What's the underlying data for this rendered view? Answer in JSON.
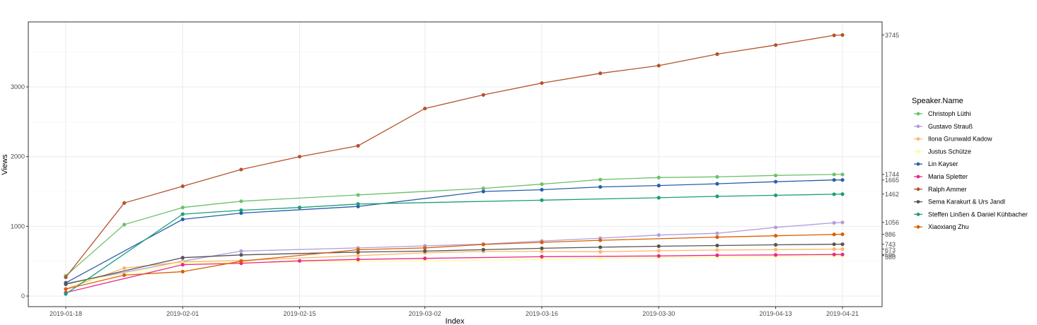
{
  "chart_data": {
    "type": "line",
    "xlabel": "Index",
    "ylabel": "Views",
    "x": [
      "2019-01-18",
      "2019-01-25",
      "2019-02-01",
      "2019-02-08",
      "2019-02-15",
      "2019-02-22",
      "2019-03-02",
      "2019-03-09",
      "2019-03-16",
      "2019-03-23",
      "2019-03-30",
      "2019-04-06",
      "2019-04-13",
      "2019-04-20",
      "2019-04-21"
    ],
    "x_ticks": [
      "2019-01-18",
      "2019-02-01",
      "2019-02-15",
      "2019-03-02",
      "2019-03-16",
      "2019-03-30",
      "2019-04-13",
      "2019-04-21"
    ],
    "y_ticks": [
      0,
      1000,
      2000,
      3000
    ],
    "ylim": [
      -150,
      3900
    ],
    "grid": true,
    "legend_title": "Speaker.Name",
    "legend_position": "right",
    "secondary_axis_labels": [
      "3745",
      "1744",
      "1665",
      "1462",
      "1056",
      "886",
      "743",
      "673",
      "596",
      "580"
    ],
    "series": [
      {
        "name": "Christoph Lüthi",
        "color": "#6cc06b",
        "values": [
          290,
          1025,
          1270,
          1360,
          null,
          1450,
          null,
          1545,
          1605,
          1670,
          1700,
          1710,
          1730,
          1744,
          1744
        ]
      },
      {
        "name": "Gustavo Strauß",
        "color": "#b39ddb",
        "values": [
          180,
          null,
          500,
          645,
          null,
          690,
          720,
          745,
          790,
          830,
          875,
          900,
          985,
          1050,
          1056
        ]
      },
      {
        "name": "Ilona Grunwald Kadow",
        "color": "#fdb56b",
        "values": [
          100,
          400,
          490,
          510,
          null,
          580,
          620,
          640,
          640,
          635,
          650,
          660,
          665,
          673,
          673
        ]
      },
      {
        "name": "Justus Schütze",
        "color": "#ffff99",
        "values": [
          170,
          null,
          470,
          480,
          null,
          495,
          505,
          null,
          525,
          540,
          548,
          560,
          570,
          580,
          580
        ]
      },
      {
        "name": "Lin Kayser",
        "color": "#2a5eaa",
        "values": [
          190,
          null,
          1100,
          1190,
          null,
          1285,
          null,
          1500,
          1525,
          1565,
          1585,
          1610,
          1640,
          1665,
          1665
        ]
      },
      {
        "name": "Maria Spletter",
        "color": "#e7298a",
        "values": [
          50,
          null,
          450,
          470,
          505,
          525,
          540,
          null,
          565,
          null,
          575,
          585,
          590,
          596,
          596
        ]
      },
      {
        "name": "Ralph Ammer",
        "color": "#b5532a",
        "values": [
          270,
          1335,
          1575,
          1815,
          2000,
          2155,
          2690,
          2885,
          3055,
          3195,
          3305,
          3470,
          3600,
          3740,
          3745
        ]
      },
      {
        "name": "Sema Karakurt & Urs Jandl",
        "color": "#555555",
        "values": [
          170,
          null,
          550,
          590,
          null,
          630,
          645,
          665,
          685,
          700,
          715,
          725,
          735,
          743,
          743
        ]
      },
      {
        "name": "Steffen Linßen & Daniel Kühbacher",
        "color": "#1b9e77",
        "values": [
          30,
          null,
          1175,
          1230,
          1270,
          1320,
          null,
          null,
          1375,
          null,
          1410,
          1430,
          1445,
          1460,
          1462
        ]
      },
      {
        "name": "Xiaoxiang Zhu",
        "color": "#d95f02",
        "values": [
          100,
          300,
          350,
          500,
          null,
          665,
          690,
          740,
          770,
          800,
          null,
          845,
          865,
          884,
          886
        ]
      }
    ]
  }
}
